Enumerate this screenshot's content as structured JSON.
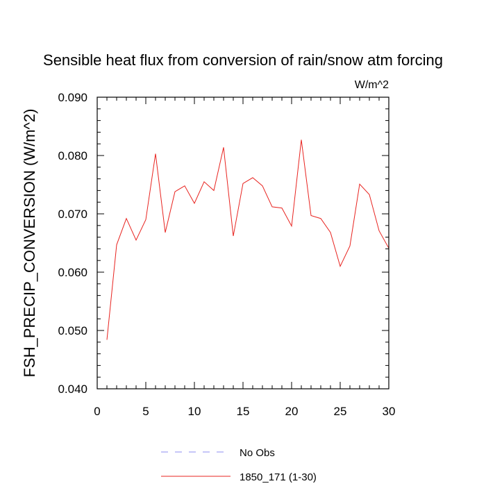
{
  "chart_data": {
    "type": "line",
    "title": "Sensible heat flux from conversion of rain/snow atm forcing",
    "units_label": "W/m^2",
    "xlabel": "",
    "ylabel": "FSH_PRECIP_CONVERSION  (W/m^2)",
    "xlim": [
      0,
      30
    ],
    "ylim": [
      0.04,
      0.09
    ],
    "x_ticks": [
      0,
      5,
      10,
      15,
      20,
      25,
      30
    ],
    "y_ticks": [
      0.04,
      0.05,
      0.06,
      0.07,
      0.08,
      0.09
    ],
    "y_tick_labels": [
      "0.040",
      "0.050",
      "0.060",
      "0.070",
      "0.080",
      "0.090"
    ],
    "series": [
      {
        "name": "1850_171 (1-30)",
        "color": "#e8231f",
        "style": "solid",
        "x": [
          1,
          2,
          3,
          4,
          5,
          6,
          7,
          8,
          9,
          10,
          11,
          12,
          13,
          14,
          15,
          16,
          17,
          18,
          19,
          20,
          21,
          22,
          23,
          24,
          25,
          26,
          27,
          28,
          29,
          30
        ],
        "values": [
          0.0484,
          0.0647,
          0.0692,
          0.0655,
          0.069,
          0.0803,
          0.0668,
          0.0738,
          0.0748,
          0.0718,
          0.0755,
          0.074,
          0.0814,
          0.0662,
          0.0752,
          0.0762,
          0.0748,
          0.0712,
          0.071,
          0.0679,
          0.0827,
          0.0697,
          0.0692,
          0.0668,
          0.061,
          0.0645,
          0.0751,
          0.0733,
          0.0671,
          0.0641
        ]
      }
    ],
    "legend": {
      "placement": "bottom-center",
      "entries": [
        {
          "label": "No Obs",
          "color": "#8c8cf0",
          "style": "dashed"
        },
        {
          "label": "1850_171 (1-30)",
          "color": "#e8231f",
          "style": "solid"
        }
      ]
    },
    "grid": false
  }
}
